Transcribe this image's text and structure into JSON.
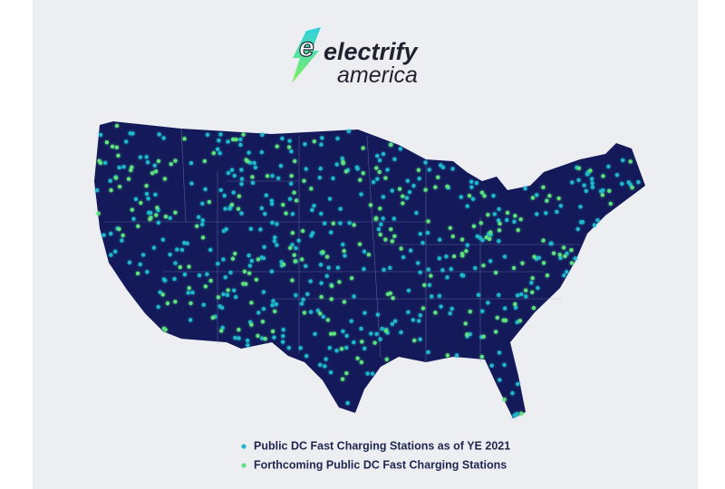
{
  "logo": {
    "line1": "electrify",
    "line2": "america"
  },
  "legend": [
    {
      "label": "Public DC Fast Charging Stations as of YE 2021",
      "color": "#1fb8cc"
    },
    {
      "label": "Forthcoming Public DC Fast Charging Stations",
      "color": "#5ee27c"
    }
  ],
  "map_color": "#14195a"
}
